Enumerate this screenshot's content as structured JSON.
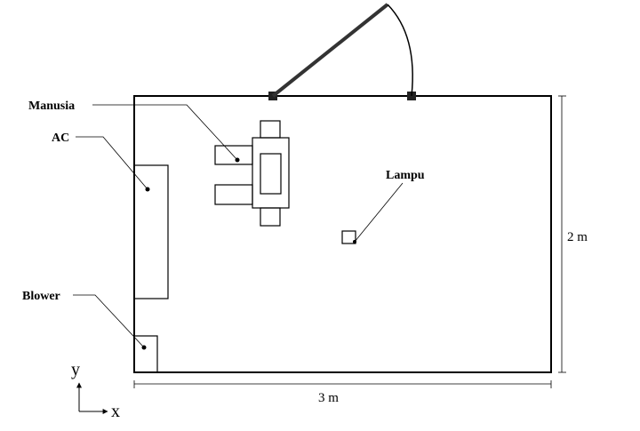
{
  "labels": {
    "human": "Manusia",
    "ac": "AC",
    "lamp": "Lampu",
    "blower": "Blower"
  },
  "dimensions": {
    "width": "3 m",
    "height": "2 m"
  },
  "axes": {
    "x": "x",
    "y": "y"
  }
}
